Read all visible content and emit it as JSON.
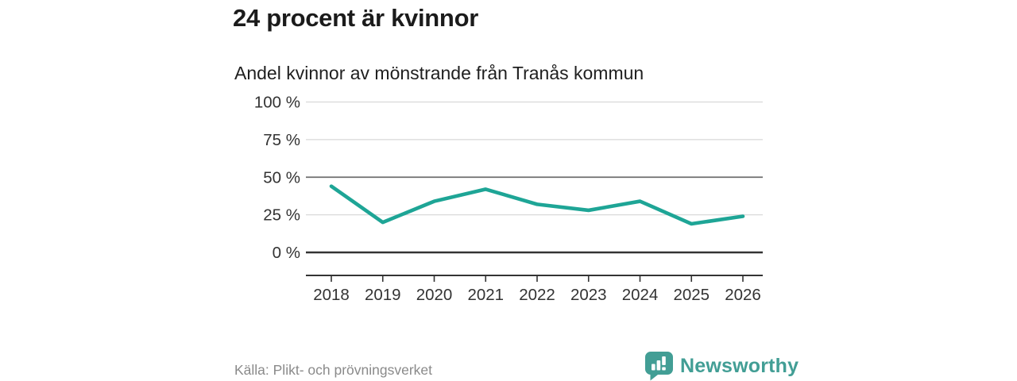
{
  "header": {
    "title": "24 procent är kvinnor",
    "subtitle": "Andel kvinnor av mönstrande från Tranås kommun"
  },
  "chart_data": {
    "type": "line",
    "title": "24 procent är kvinnor",
    "subtitle": "Andel kvinnor av mönstrande från Tranås kommun",
    "categories": [
      "2018",
      "2019",
      "2020",
      "2021",
      "2022",
      "2023",
      "2024",
      "2025",
      "2026"
    ],
    "values": [
      44,
      20,
      34,
      42,
      32,
      28,
      34,
      19,
      24
    ],
    "unit": "%",
    "xlabel": "",
    "ylabel": "",
    "ylim": [
      0,
      100
    ],
    "y_ticks": [
      {
        "value": 100,
        "label": "100 %"
      },
      {
        "value": 75,
        "label": "75 %"
      },
      {
        "value": 50,
        "label": "50 %"
      },
      {
        "value": 25,
        "label": "25 %"
      },
      {
        "value": 0,
        "label": "0 %"
      }
    ],
    "grid": "horizontal",
    "emphasized_gridlines": [
      50,
      0
    ],
    "legend": "none",
    "line_color": "#1ea596"
  },
  "footer": {
    "source": "Källa: Plikt- och prövningsverket",
    "brand": "Newsworthy"
  },
  "colors": {
    "line": "#1ea596",
    "grid_light": "#d9d9d9",
    "grid_mid": "#6e6e6e",
    "grid_zero": "#333333",
    "axis": "#333333",
    "tick_text": "#333333",
    "source_text": "#8a8a8a",
    "brand_teal": "#429e95"
  }
}
